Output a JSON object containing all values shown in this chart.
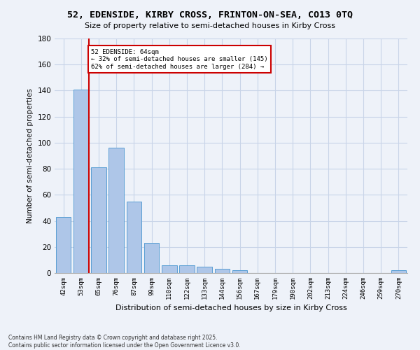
{
  "title_line1": "52, EDENSIDE, KIRBY CROSS, FRINTON-ON-SEA, CO13 0TQ",
  "title_line2": "Size of property relative to semi-detached houses in Kirby Cross",
  "xlabel": "Distribution of semi-detached houses by size in Kirby Cross",
  "ylabel": "Number of semi-detached properties",
  "categories": [
    "42sqm",
    "53sqm",
    "65sqm",
    "76sqm",
    "87sqm",
    "99sqm",
    "110sqm",
    "122sqm",
    "133sqm",
    "144sqm",
    "156sqm",
    "167sqm",
    "179sqm",
    "190sqm",
    "202sqm",
    "213sqm",
    "224sqm",
    "246sqm",
    "259sqm",
    "270sqm"
  ],
  "values": [
    43,
    141,
    81,
    96,
    55,
    23,
    6,
    6,
    5,
    3,
    2,
    0,
    0,
    0,
    0,
    0,
    0,
    0,
    0,
    2
  ],
  "bar_color": "#aec6e8",
  "bar_edge_color": "#5a9fd4",
  "highlight_bar_index": 1,
  "highlight_color": "#cc0000",
  "annotation_text": "52 EDENSIDE: 64sqm\n← 32% of semi-detached houses are smaller (145)\n62% of semi-detached houses are larger (284) →",
  "annotation_box_color": "#ffffff",
  "annotation_box_edge": "#cc0000",
  "ylim": [
    0,
    180
  ],
  "yticks": [
    0,
    20,
    40,
    60,
    80,
    100,
    120,
    140,
    160,
    180
  ],
  "footer_line1": "Contains HM Land Registry data © Crown copyright and database right 2025.",
  "footer_line2": "Contains public sector information licensed under the Open Government Licence v3.0.",
  "background_color": "#eef2f9",
  "grid_color": "#c8d4e8"
}
